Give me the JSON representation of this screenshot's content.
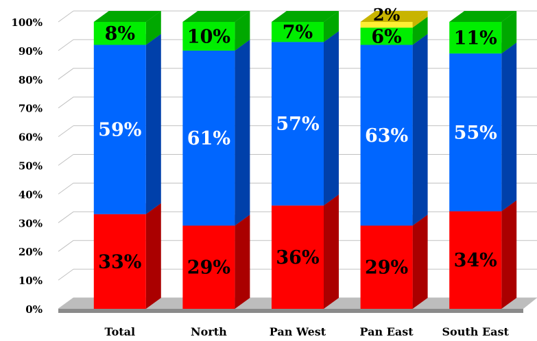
{
  "chart_data": {
    "type": "bar",
    "stacked": true,
    "render": "3d",
    "categories": [
      "Total",
      "North",
      "Pan West",
      "Pan East",
      "South East"
    ],
    "series": [
      {
        "values": [
          33,
          29,
          36,
          29,
          34
        ],
        "labels": [
          "33%",
          "29%",
          "36%",
          "29%",
          "34%"
        ],
        "color": "#ff0000",
        "side_color": "#aa0000",
        "label_color": "#000000"
      },
      {
        "values": [
          59,
          61,
          57,
          63,
          55
        ],
        "labels": [
          "59%",
          "61%",
          "57%",
          "63%",
          "55%"
        ],
        "color": "#0066ff",
        "side_color": "#0040aa",
        "label_color": "#ffffff"
      },
      {
        "values": [
          8,
          10,
          7,
          6,
          11
        ],
        "labels": [
          "8%",
          "10%",
          "7%",
          "6%",
          "11%"
        ],
        "color": "#00ee00",
        "side_color": "#00a800",
        "label_color": "#000000"
      },
      {
        "values": [
          0,
          0,
          0,
          2,
          0
        ],
        "labels": [
          "",
          "",
          "",
          "2%",
          ""
        ],
        "color": "#ffee33",
        "side_color": "#c8b400",
        "label_color": "#000000"
      }
    ],
    "y_ticks": [
      "0%",
      "10%",
      "20%",
      "30%",
      "40%",
      "50%",
      "60%",
      "70%",
      "80%",
      "90%",
      "100%"
    ],
    "ylim": [
      0,
      100
    ],
    "grid": true,
    "legend": "none",
    "colors": {
      "gridline": "#c0c0c0",
      "back_wall": "#ffffff",
      "floor_top": "#bdbdbd",
      "floor_side": "#8a8a8a"
    }
  }
}
